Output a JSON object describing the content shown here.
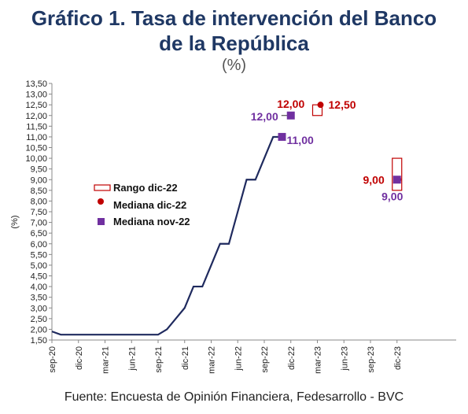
{
  "title_line1": "Gráfico 1. Tasa de intervención del Banco",
  "title_line2": "de la República",
  "subtitle": "(%)",
  "source": "Fuente: Encuesta de Opinión Financiera, Fedesarrollo - BVC",
  "colors": {
    "line": "#1f2a5e",
    "purple": "#7030a0",
    "red": "#c00000",
    "title": "#1f3864"
  },
  "chart_data": {
    "type": "line",
    "ylabel": "(%)",
    "ylim": [
      1.5,
      13.5
    ],
    "yticks": [
      "1,50",
      "2,00",
      "2,50",
      "3,00",
      "3,50",
      "4,00",
      "4,50",
      "5,00",
      "5,50",
      "6,00",
      "6,50",
      "7,00",
      "7,50",
      "8,00",
      "8,50",
      "9,00",
      "9,50",
      "10,00",
      "10,50",
      "11,00",
      "11,50",
      "12,00",
      "12,50",
      "13,00",
      "13,50"
    ],
    "xticks": [
      "sep-20",
      "dic-20",
      "mar-21",
      "jun-21",
      "sep-21",
      "dic-21",
      "mar-22",
      "jun-22",
      "sep-22",
      "dic-22",
      "mar-23",
      "jun-23",
      "sep-23",
      "dic-23"
    ],
    "series": [
      {
        "points": [
          [
            "sep-20",
            1.9
          ],
          [
            "oct-20",
            1.75
          ],
          [
            "nov-20",
            1.75
          ],
          [
            "dic-20",
            1.75
          ],
          [
            "ene-21",
            1.75
          ],
          [
            "feb-21",
            1.75
          ],
          [
            "mar-21",
            1.75
          ],
          [
            "abr-21",
            1.75
          ],
          [
            "may-21",
            1.75
          ],
          [
            "jun-21",
            1.75
          ],
          [
            "jul-21",
            1.75
          ],
          [
            "ago-21",
            1.75
          ],
          [
            "sep-21",
            1.75
          ],
          [
            "oct-21",
            2.0
          ],
          [
            "nov-21",
            2.5
          ],
          [
            "dic-21",
            3.0
          ],
          [
            "ene-22",
            4.0
          ],
          [
            "feb-22",
            4.0
          ],
          [
            "mar-22",
            5.0
          ],
          [
            "abr-22",
            6.0
          ],
          [
            "may-22",
            6.0
          ],
          [
            "jun-22",
            7.5
          ],
          [
            "jul-22",
            9.0
          ],
          [
            "ago-22",
            9.0
          ],
          [
            "sep-22",
            10.0
          ],
          [
            "oct-22",
            11.0
          ],
          [
            "nov-22",
            11.0
          ]
        ]
      }
    ],
    "markers": [
      {
        "series": "Mediana nov-22",
        "x": "nov-22",
        "y": 11.0,
        "label": "11,00"
      },
      {
        "series": "Mediana nov-22",
        "x": "dic-22",
        "y": 12.0,
        "label": "12,00"
      },
      {
        "series": "Mediana nov-22",
        "x": "dic-23",
        "y": 9.0,
        "label": "9,00"
      },
      {
        "series": "Mediana dic-22",
        "x": "dic-22",
        "y": 12.0,
        "label": "12,00"
      },
      {
        "series": "Mediana dic-22",
        "x": "mar-23",
        "y": 12.5,
        "label": "12,50"
      },
      {
        "series": "Mediana dic-22",
        "x": "dic-23",
        "y": 9.0,
        "label": "9,00"
      }
    ],
    "ranges": [
      {
        "series": "Rango dic-22",
        "x": "mar-23",
        "low": 12.0,
        "high": 12.5
      },
      {
        "series": "Rango dic-22",
        "x": "dic-23",
        "low": 8.5,
        "high": 10.0
      }
    ],
    "legend": {
      "placement": "center-left",
      "entries": [
        "Rango dic-22",
        "Mediana dic-22",
        "Mediana nov-22"
      ]
    }
  }
}
